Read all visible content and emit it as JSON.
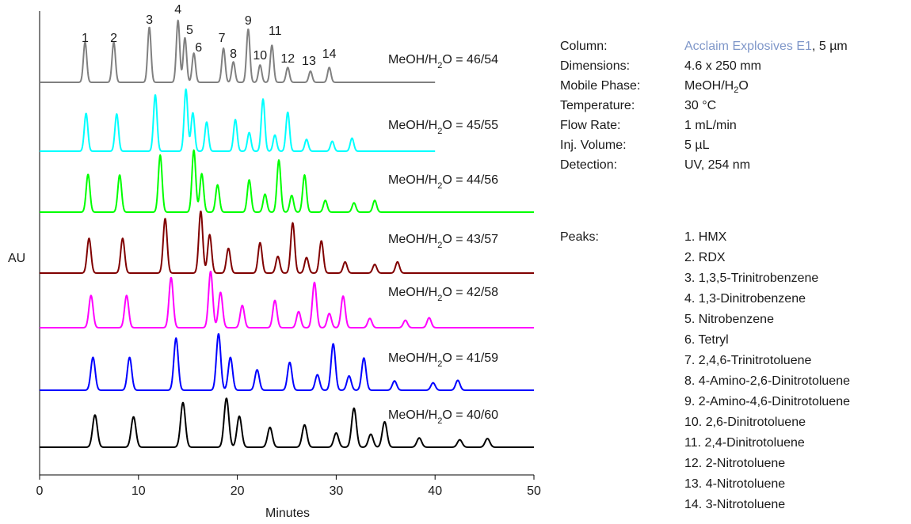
{
  "chart_data": {
    "type": "line",
    "ylabel": "AU",
    "xlabel": "Minutes",
    "xlim": [
      0,
      50
    ],
    "xticks": [
      0,
      10,
      20,
      30,
      40,
      50
    ],
    "peak_labels": [
      "1",
      "2",
      "3",
      "4",
      "5",
      "6",
      "7",
      "8",
      "9",
      "10",
      "11",
      "12",
      "13",
      "14"
    ],
    "series": [
      {
        "name": "MeOH/H2O = 46/54",
        "label_main": "MeOH/H",
        "label_sub": "2",
        "label_tail": "O = 46/54",
        "color": "#808080",
        "x_end": 40,
        "peaks": [
          {
            "rt": 4.6,
            "h": 0.65
          },
          {
            "rt": 7.5,
            "h": 0.65
          },
          {
            "rt": 11.1,
            "h": 0.89
          },
          {
            "rt": 14.0,
            "h": 1.0
          },
          {
            "rt": 14.7,
            "h": 0.72
          },
          {
            "rt": 15.6,
            "h": 0.47
          },
          {
            "rt": 18.6,
            "h": 0.55
          },
          {
            "rt": 19.6,
            "h": 0.33
          },
          {
            "rt": 21.1,
            "h": 0.86
          },
          {
            "rt": 22.3,
            "h": 0.28
          },
          {
            "rt": 23.5,
            "h": 0.6
          },
          {
            "rt": 25.1,
            "h": 0.24
          },
          {
            "rt": 27.4,
            "h": 0.18
          },
          {
            "rt": 29.3,
            "h": 0.24
          }
        ]
      },
      {
        "name": "MeOH/H2O = 45/55",
        "label_main": "MeOH/H",
        "label_sub": "2",
        "label_tail": "O = 45/55",
        "color": "#00ffff",
        "x_end": 40,
        "peaks": [
          {
            "rt": 4.7,
            "h": 0.61
          },
          {
            "rt": 7.8,
            "h": 0.6
          },
          {
            "rt": 11.7,
            "h": 0.91
          },
          {
            "rt": 14.8,
            "h": 1.0
          },
          {
            "rt": 15.5,
            "h": 0.62
          },
          {
            "rt": 16.9,
            "h": 0.47
          },
          {
            "rt": 19.8,
            "h": 0.51
          },
          {
            "rt": 21.2,
            "h": 0.3
          },
          {
            "rt": 22.6,
            "h": 0.84
          },
          {
            "rt": 23.8,
            "h": 0.26
          },
          {
            "rt": 25.1,
            "h": 0.63
          },
          {
            "rt": 27.0,
            "h": 0.19
          },
          {
            "rt": 29.6,
            "h": 0.16
          },
          {
            "rt": 31.6,
            "h": 0.21
          }
        ]
      },
      {
        "name": "MeOH/H2O = 44/56",
        "label_main": "MeOH/H",
        "label_sub": "2",
        "label_tail": "O = 44/56",
        "color": "#00ff00",
        "x_end": 50,
        "peaks": [
          {
            "rt": 4.9,
            "h": 0.61
          },
          {
            "rt": 8.1,
            "h": 0.6
          },
          {
            "rt": 12.2,
            "h": 0.92
          },
          {
            "rt": 15.6,
            "h": 1.0
          },
          {
            "rt": 16.4,
            "h": 0.62
          },
          {
            "rt": 18.0,
            "h": 0.44
          },
          {
            "rt": 21.2,
            "h": 0.52
          },
          {
            "rt": 22.8,
            "h": 0.29
          },
          {
            "rt": 24.2,
            "h": 0.84
          },
          {
            "rt": 25.5,
            "h": 0.27
          },
          {
            "rt": 26.8,
            "h": 0.6
          },
          {
            "rt": 28.9,
            "h": 0.19
          },
          {
            "rt": 31.8,
            "h": 0.15
          },
          {
            "rt": 33.9,
            "h": 0.19
          }
        ]
      },
      {
        "name": "MeOH/H2O = 43/57",
        "label_main": "MeOH/H",
        "label_sub": "2",
        "label_tail": "O = 43/57",
        "color": "#800000",
        "x_end": 50,
        "peaks": [
          {
            "rt": 5.0,
            "h": 0.56
          },
          {
            "rt": 8.4,
            "h": 0.56
          },
          {
            "rt": 12.7,
            "h": 0.88
          },
          {
            "rt": 16.3,
            "h": 1.0
          },
          {
            "rt": 17.2,
            "h": 0.62
          },
          {
            "rt": 19.1,
            "h": 0.4
          },
          {
            "rt": 22.3,
            "h": 0.49
          },
          {
            "rt": 24.1,
            "h": 0.27
          },
          {
            "rt": 25.6,
            "h": 0.81
          },
          {
            "rt": 27.0,
            "h": 0.25
          },
          {
            "rt": 28.5,
            "h": 0.52
          },
          {
            "rt": 30.9,
            "h": 0.18
          },
          {
            "rt": 33.9,
            "h": 0.14
          },
          {
            "rt": 36.2,
            "h": 0.18
          }
        ]
      },
      {
        "name": "MeOH/H2O = 42/58",
        "label_main": "MeOH/H",
        "label_sub": "2",
        "label_tail": "O = 42/58",
        "color": "#ff00ff",
        "x_end": 50,
        "peaks": [
          {
            "rt": 5.2,
            "h": 0.52
          },
          {
            "rt": 8.8,
            "h": 0.52
          },
          {
            "rt": 13.3,
            "h": 0.81
          },
          {
            "rt": 17.3,
            "h": 0.91
          },
          {
            "rt": 18.3,
            "h": 0.57
          },
          {
            "rt": 20.5,
            "h": 0.36
          },
          {
            "rt": 23.8,
            "h": 0.44
          },
          {
            "rt": 26.2,
            "h": 0.26
          },
          {
            "rt": 27.8,
            "h": 0.73
          },
          {
            "rt": 29.3,
            "h": 0.23
          },
          {
            "rt": 30.7,
            "h": 0.51
          },
          {
            "rt": 33.4,
            "h": 0.15
          },
          {
            "rt": 37.0,
            "h": 0.12
          },
          {
            "rt": 39.4,
            "h": 0.16
          }
        ]
      },
      {
        "name": "MeOH/H2O = 41/59",
        "label_main": "MeOH/H",
        "label_sub": "2",
        "label_tail": "O = 41/59",
        "color": "#0000ff",
        "x_end": 50,
        "peaks": [
          {
            "rt": 5.4,
            "h": 0.53
          },
          {
            "rt": 9.1,
            "h": 0.53
          },
          {
            "rt": 13.8,
            "h": 0.84
          },
          {
            "rt": 18.1,
            "h": 0.91
          },
          {
            "rt": 19.3,
            "h": 0.53
          },
          {
            "rt": 22.0,
            "h": 0.33
          },
          {
            "rt": 25.3,
            "h": 0.45
          },
          {
            "rt": 28.1,
            "h": 0.25
          },
          {
            "rt": 29.7,
            "h": 0.75
          },
          {
            "rt": 31.3,
            "h": 0.23
          },
          {
            "rt": 32.8,
            "h": 0.52
          },
          {
            "rt": 35.9,
            "h": 0.15
          },
          {
            "rt": 39.8,
            "h": 0.12
          },
          {
            "rt": 42.3,
            "h": 0.16
          }
        ]
      },
      {
        "name": "MeOH/H2O = 40/60",
        "label_main": "MeOH/H",
        "label_sub": "2",
        "label_tail": "O = 40/60",
        "color": "#000000",
        "x_end": 50,
        "peaks": [
          {
            "rt": 5.6,
            "h": 0.52
          },
          {
            "rt": 9.5,
            "h": 0.49
          },
          {
            "rt": 14.5,
            "h": 0.72
          },
          {
            "rt": 18.9,
            "h": 0.79
          },
          {
            "rt": 20.2,
            "h": 0.5
          },
          {
            "rt": 23.3,
            "h": 0.32
          },
          {
            "rt": 26.8,
            "h": 0.36
          },
          {
            "rt": 30.0,
            "h": 0.23
          },
          {
            "rt": 31.8,
            "h": 0.63
          },
          {
            "rt": 33.5,
            "h": 0.21
          },
          {
            "rt": 34.9,
            "h": 0.41
          },
          {
            "rt": 38.4,
            "h": 0.15
          },
          {
            "rt": 42.5,
            "h": 0.12
          },
          {
            "rt": 45.3,
            "h": 0.14
          }
        ]
      }
    ]
  },
  "conditions": [
    {
      "label": "Column:",
      "value_accent": "Acclaim Explosives E1",
      "value": ", 5 µm"
    },
    {
      "label": "Dimensions:",
      "value_accent": "",
      "value": "4.6 x 250 mm"
    },
    {
      "label": "Mobile Phase:",
      "value_accent": "",
      "value": "MeOH/H",
      "value_sub": "2",
      "value_tail": "O"
    },
    {
      "label": "Temperature:",
      "value_accent": "",
      "value": "30 °C"
    },
    {
      "label": "Flow Rate:",
      "value_accent": "",
      "value": "1 mL/min"
    },
    {
      "label": "Inj. Volume:",
      "value_accent": "",
      "value": "5 µL"
    },
    {
      "label": "Detection:",
      "value_accent": "",
      "value": "UV, 254 nm"
    }
  ],
  "peaks_list": {
    "label": "Peaks:",
    "items": [
      "1. HMX",
      "2. RDX",
      "3. 1,3,5-Trinitrobenzene",
      "4. 1,3-Dinitrobenzene",
      "5. Nitrobenzene",
      "6. Tetryl",
      "7. 2,4,6-Trinitrotoluene",
      "8. 4-Amino-2,6-Dinitrotoluene",
      "9. 2-Amino-4,6-Dinitrotoluene",
      "10. 2,6-Dinitrotoluene",
      "11. 2,4-Dinitrotoluene",
      "12. 2-Nitrotoluene",
      "13. 4-Nitrotoluene",
      "14. 3-Nitrotoluene"
    ]
  }
}
